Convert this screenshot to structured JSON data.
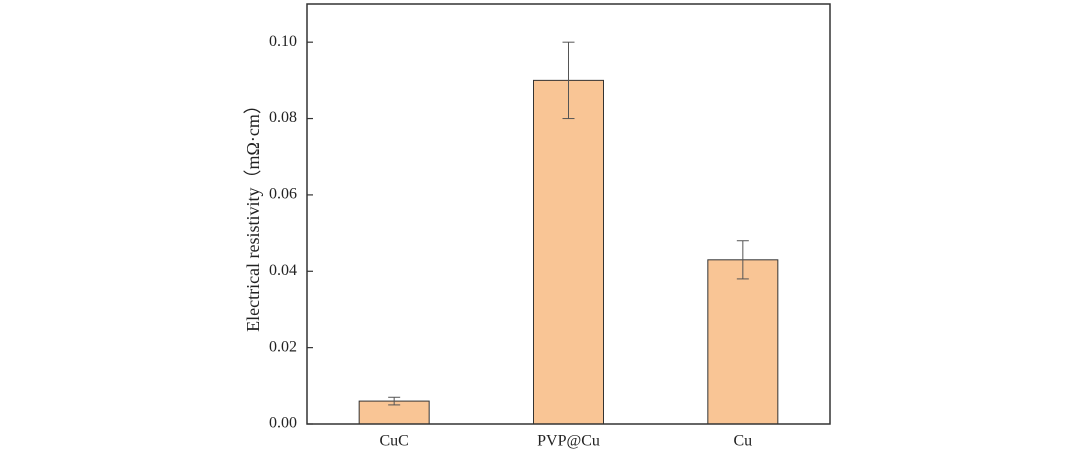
{
  "chart_data": {
    "type": "bar",
    "y_label": "Electrical resistivity（mΩ·cm）",
    "categories": [
      "CuC",
      "PVP@Cu",
      "Cu"
    ],
    "values": [
      0.006,
      0.09,
      0.043
    ],
    "errors": [
      0.001,
      0.01,
      0.005
    ],
    "color": "#f9c595",
    "ylim": [
      0,
      0.11
    ],
    "yticks": [
      {
        "value": 0,
        "label": "0.00"
      },
      {
        "value": 0.02,
        "label": "0.02"
      },
      {
        "value": 0.04,
        "label": "0.04"
      },
      {
        "value": 0.06,
        "label": "0.06"
      },
      {
        "value": 0.08,
        "label": "0.08"
      },
      {
        "value": 0.1,
        "label": "0.10"
      }
    ],
    "grid": false
  }
}
